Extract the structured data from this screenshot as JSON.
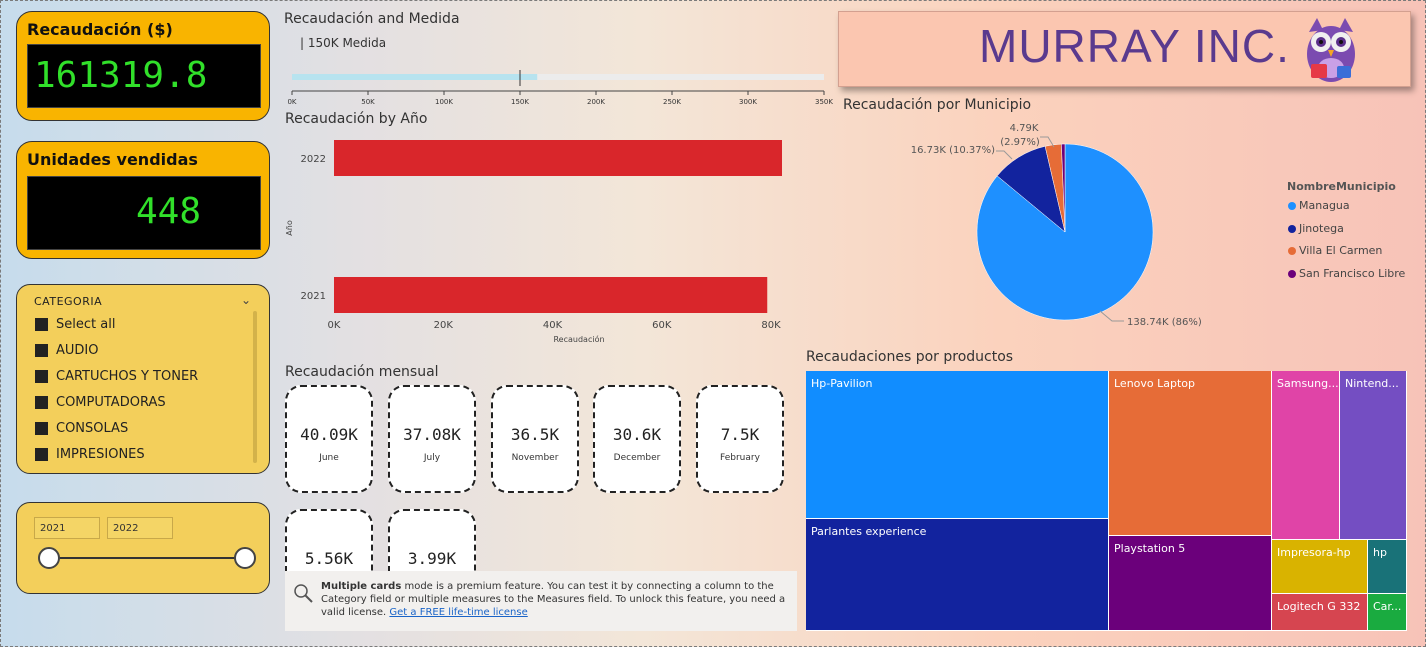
{
  "kpis": {
    "recaudacion": {
      "title": "Recaudación ($)",
      "value": "161319.8"
    },
    "unidades": {
      "title": "Unidades vendidas",
      "value": "448"
    }
  },
  "categoria_slicer": {
    "title": "CATEGORIA",
    "items": [
      "Select all",
      "AUDIO",
      "CARTUCHOS Y TONER",
      "COMPUTADORAS",
      "CONSOLAS",
      "IMPRESIONES"
    ]
  },
  "year_range": {
    "from": "2021",
    "to": "2022"
  },
  "gauge": {
    "title": "Recaudación and Medida",
    "label": "| 150K Medida",
    "ticks": [
      "0K",
      "50K",
      "100K",
      "150K",
      "200K",
      "250K",
      "300K",
      "350K"
    ],
    "max": 350000,
    "value": 161319.8,
    "target": 150000
  },
  "bar_chart_title": "Recaudación by Año",
  "monthly": {
    "title": "Recaudación mensual",
    "cards": [
      {
        "value": "40.09K",
        "label": "June"
      },
      {
        "value": "37.08K",
        "label": "July"
      },
      {
        "value": "36.5K",
        "label": "November"
      },
      {
        "value": "30.6K",
        "label": "December"
      },
      {
        "value": "7.5K",
        "label": "February"
      },
      {
        "value": "5.56K",
        "label": ""
      },
      {
        "value": "3.99K",
        "label": ""
      }
    ]
  },
  "premium_notice": {
    "bold": "Multiple cards",
    "text": " mode is a premium feature. You can test it by connecting a column to the Category field or multiple measures to the Measures field. To unlock this feature, you need a valid license. ",
    "link": "Get a FREE life-time license"
  },
  "brand": {
    "name": "MURRAY INC."
  },
  "pie_title": "Recaudación por Municipio",
  "treemap_title": "Recaudaciones por productos",
  "chart_data": [
    {
      "type": "bar",
      "title": "Recaudación by Año",
      "categories": [
        "2022",
        "2021"
      ],
      "values": [
        82000,
        79300
      ],
      "xlabel": "Recaudación",
      "ylabel": "Año",
      "xticks": [
        "0K",
        "20K",
        "40K",
        "60K",
        "80K"
      ],
      "xlim": [
        0,
        82000
      ],
      "color": "#d9262b"
    },
    {
      "type": "pie",
      "title": "Recaudación por Municipio",
      "legend_title": "NombreMunicipio",
      "slices": [
        {
          "name": "Managua",
          "value": 138.74,
          "label": "138.74K (86%)",
          "color": "#1e90ff"
        },
        {
          "name": "Jinotega",
          "value": 16.73,
          "label": "16.73K (10.37%)",
          "color": "#12239e"
        },
        {
          "name": "Villa El Carmen",
          "value": 4.79,
          "label": "4.79K (2.97%)",
          "color": "#e66c37"
        },
        {
          "name": "San Francisco Libre",
          "value": 1.06,
          "label": "",
          "color": "#6b007b"
        }
      ]
    },
    {
      "type": "treemap",
      "title": "Recaudaciones por productos",
      "items": [
        {
          "name": "Hp-Pavilion",
          "color": "#118dff"
        },
        {
          "name": "Parlantes experience",
          "color": "#12239e"
        },
        {
          "name": "Lenovo Laptop",
          "color": "#e66c37"
        },
        {
          "name": "Playstation 5",
          "color": "#6b007b"
        },
        {
          "name": "Samsung...",
          "color": "#e044a7"
        },
        {
          "name": "Nintend...",
          "color": "#744ec2"
        },
        {
          "name": "Impresora-hp",
          "color": "#d9b300"
        },
        {
          "name": "hp",
          "color": "#197278"
        },
        {
          "name": "Logitech G 332",
          "color": "#d64550"
        },
        {
          "name": "Car...",
          "color": "#1aab40"
        }
      ]
    }
  ]
}
